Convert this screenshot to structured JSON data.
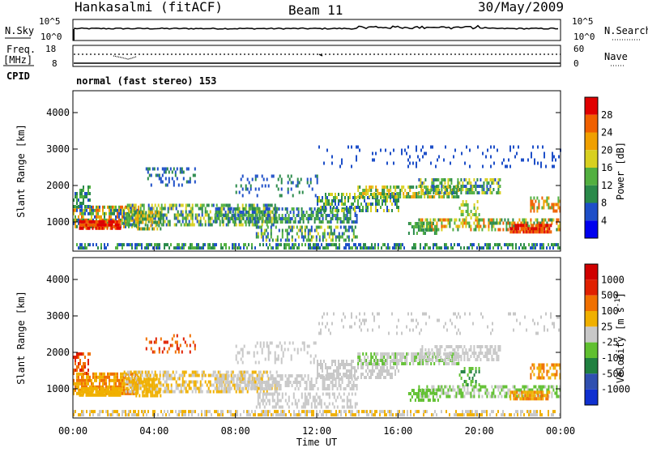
{
  "header": {
    "station": "Hankasalmi (fitACF)",
    "beam": "Beam 11",
    "date": "30/May/2009"
  },
  "noise_panel": {
    "left_label": "N.Sky",
    "right_label": "N.Search",
    "left_ticks": [
      "10^5",
      "10^0"
    ],
    "right_ticks": [
      "10^5",
      "10^0"
    ]
  },
  "freq_panel": {
    "left_label_1": "Freq.",
    "left_label_2": "[MHz]",
    "left_ticks": [
      "18",
      "8"
    ],
    "right_label": "Nave",
    "right_ticks": [
      "60",
      "0"
    ],
    "cpid_label": "CPID",
    "cpid_text": "normal (fast stereo) 153"
  },
  "chart_data": [
    {
      "type": "heatmap",
      "name": "power",
      "ylabel": "Slant Range [km]",
      "xlabel": "",
      "x_range_hours": [
        0,
        24
      ],
      "ylim": [
        200,
        4600
      ],
      "yticks": [
        "1000",
        "2000",
        "3000",
        "4000"
      ],
      "colorbar": {
        "label": "Power [dB]",
        "ticks": [
          "4",
          "8",
          "12",
          "16",
          "20",
          "24",
          "28"
        ],
        "colors": [
          "#0000ee",
          "#1e4fc8",
          "#2a8a4a",
          "#52b040",
          "#d8d020",
          "#f0a000",
          "#f06000",
          "#e00000"
        ]
      }
    },
    {
      "type": "heatmap",
      "name": "velocity",
      "ylabel": "Slant Range [km]",
      "xlabel": "Time UT",
      "x_range_hours": [
        0,
        24
      ],
      "xticks": [
        "00:00",
        "04:00",
        "08:00",
        "12:00",
        "16:00",
        "20:00",
        "00:00"
      ],
      "ylim": [
        200,
        4600
      ],
      "yticks": [
        "1000",
        "2000",
        "3000",
        "4000"
      ],
      "colorbar": {
        "label": "Velocity [m s",
        "label_sup": "-1",
        "label_end": "]",
        "ticks": [
          "1000",
          "500",
          "100",
          "25",
          "-25",
          "-100",
          "-500",
          "-1000"
        ],
        "colors": [
          "#1030d0",
          "#3050b0",
          "#208040",
          "#60c030",
          "#c8c8c8",
          "#f0b000",
          "#f07000",
          "#e02000",
          "#d00000"
        ]
      }
    }
  ]
}
